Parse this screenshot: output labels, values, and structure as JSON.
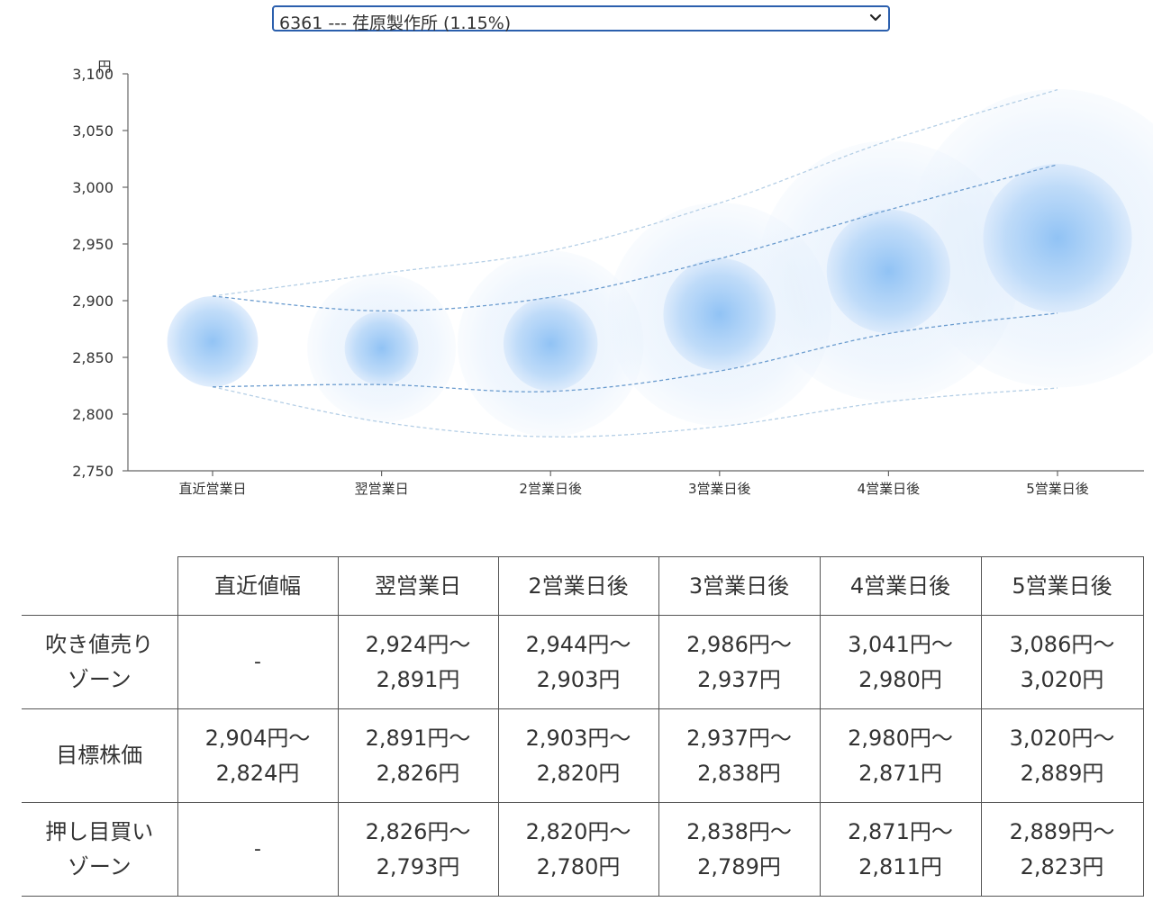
{
  "selector": {
    "value": "6361 --- 荏原製作所 (1.15%)"
  },
  "chart_data": {
    "type": "scatter",
    "ylabel": "円",
    "ylim": [
      2750,
      3100
    ],
    "yticks": [
      2750,
      2800,
      2850,
      2900,
      2950,
      3000,
      3050,
      3100
    ],
    "ytick_labels": [
      "2,750",
      "2,800",
      "2,850",
      "2,900",
      "2,950",
      "3,000",
      "3,050",
      "3,100"
    ],
    "categories": [
      "直近営業日",
      "翌営業日",
      "2営業日後",
      "3営業日後",
      "4営業日後",
      "5営業日後"
    ],
    "center": [
      2864,
      2858,
      2862,
      2888,
      2926,
      2955
    ],
    "target_upper": [
      2904,
      2891,
      2903,
      2937,
      2980,
      3020
    ],
    "target_lower": [
      2824,
      2826,
      2820,
      2838,
      2871,
      2889
    ],
    "outer_upper": [
      2904,
      2924,
      2944,
      2986,
      3041,
      3086
    ],
    "outer_lower": [
      2824,
      2793,
      2780,
      2789,
      2811,
      2823
    ],
    "colors": {
      "bubble": "#6aaaf0",
      "line_dark": "#6b9ccf",
      "line_light": "#b5cfe6",
      "axis": "#666666"
    }
  },
  "table": {
    "headers": [
      "",
      "直近値幅",
      "翌営業日",
      "2営業日後",
      "3営業日後",
      "4営業日後",
      "5営業日後"
    ],
    "rows": [
      {
        "label": [
          "吹き値売り",
          "ゾーン"
        ],
        "cells": [
          [
            "-",
            ""
          ],
          [
            "2,924円〜",
            "2,891円"
          ],
          [
            "2,944円〜",
            "2,903円"
          ],
          [
            "2,986円〜",
            "2,937円"
          ],
          [
            "3,041円〜",
            "2,980円"
          ],
          [
            "3,086円〜",
            "3,020円"
          ]
        ]
      },
      {
        "label": [
          "目標株価",
          ""
        ],
        "cells": [
          [
            "2,904円〜",
            "2,824円"
          ],
          [
            "2,891円〜",
            "2,826円"
          ],
          [
            "2,903円〜",
            "2,820円"
          ],
          [
            "2,937円〜",
            "2,838円"
          ],
          [
            "2,980円〜",
            "2,871円"
          ],
          [
            "3,020円〜",
            "2,889円"
          ]
        ]
      },
      {
        "label": [
          "押し目買い",
          "ゾーン"
        ],
        "cells": [
          [
            "-",
            ""
          ],
          [
            "2,826円〜",
            "2,793円"
          ],
          [
            "2,820円〜",
            "2,780円"
          ],
          [
            "2,838円〜",
            "2,789円"
          ],
          [
            "2,871円〜",
            "2,811円"
          ],
          [
            "2,889円〜",
            "2,823円"
          ]
        ]
      }
    ]
  }
}
